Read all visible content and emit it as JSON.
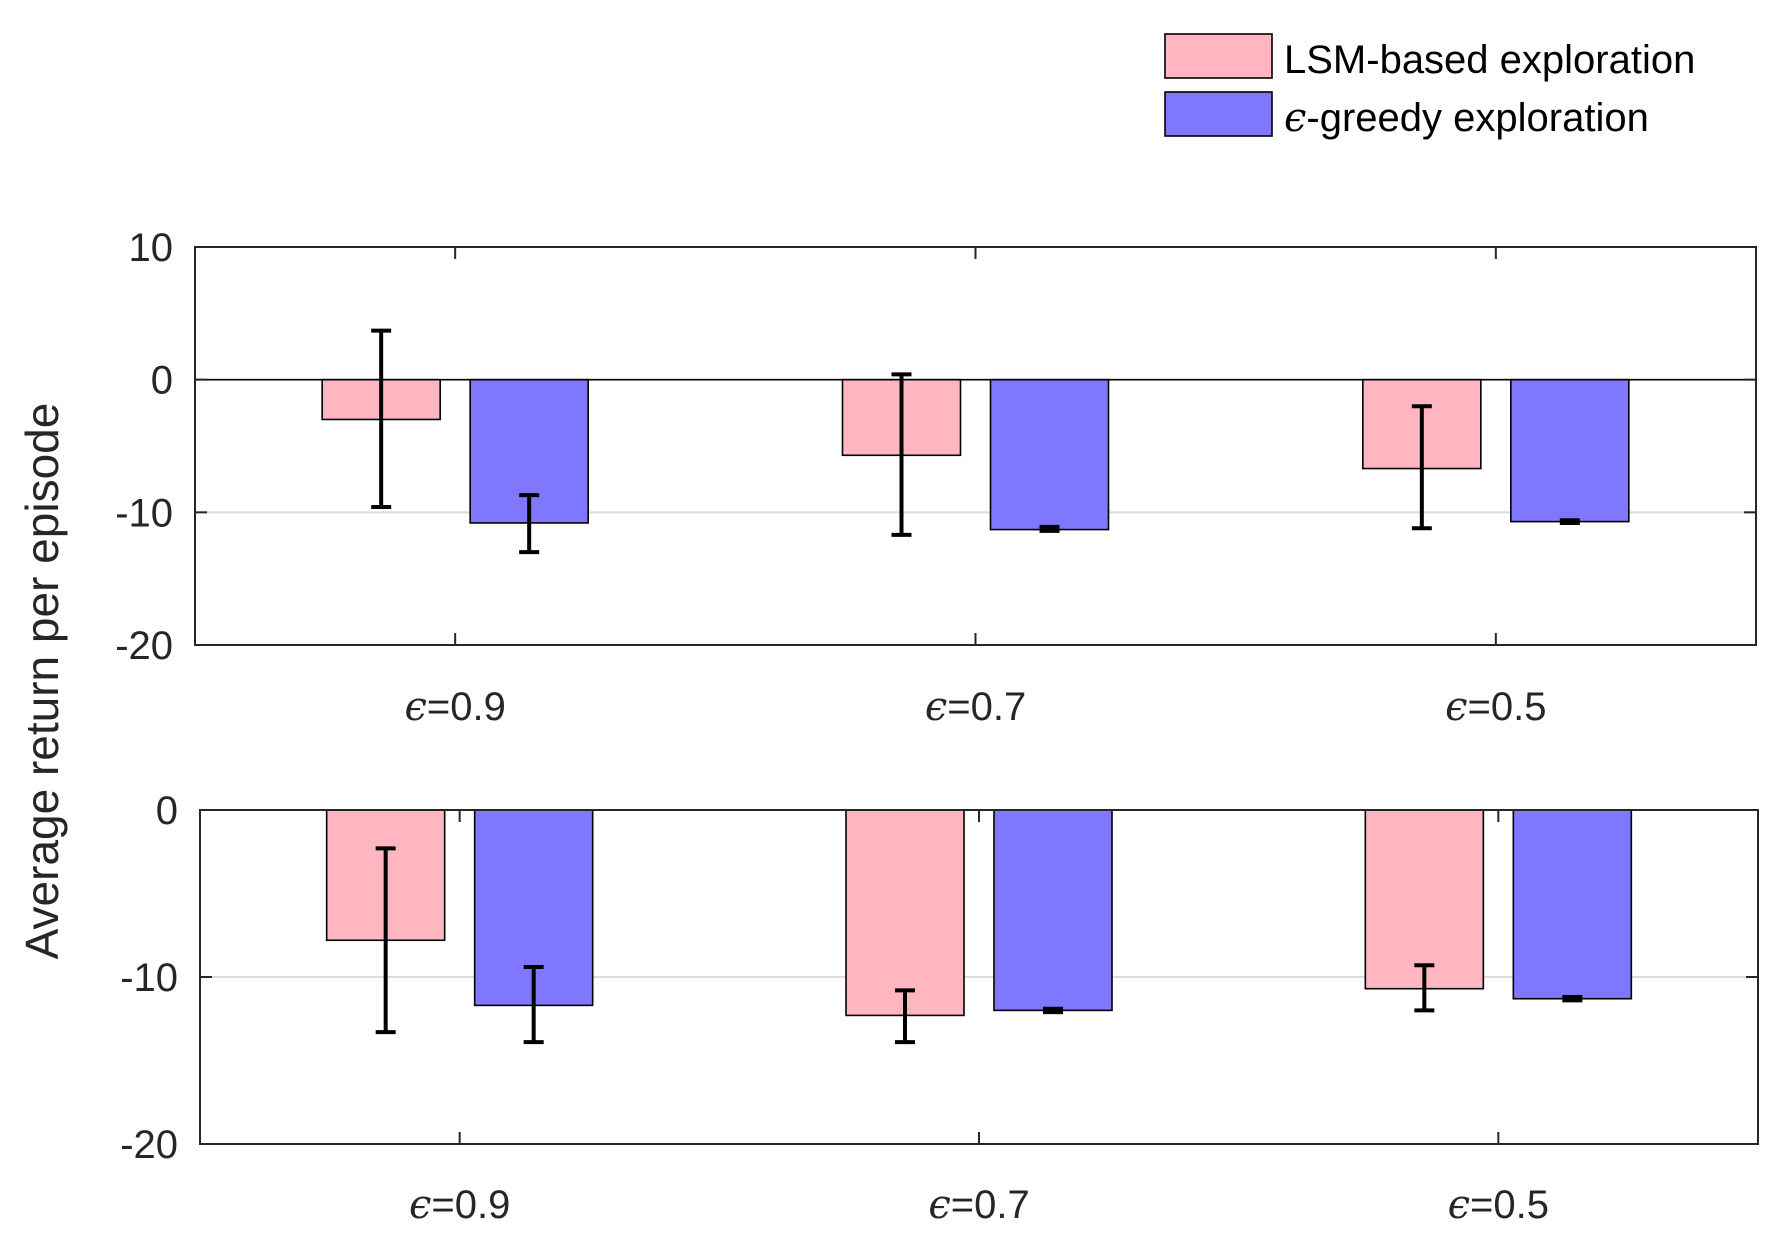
{
  "figure_ylabel": "Average return per episode",
  "legend": [
    {
      "label_prefix": "",
      "label": "LSM-based exploration",
      "color": "#FFB6C1"
    },
    {
      "label_prefix": "ϵ",
      "label": "-greedy exploration",
      "color": "#8077FF"
    }
  ],
  "chart_data": [
    {
      "type": "bar",
      "categories": [
        {
          "symbol": "ϵ",
          "text": "=0.9"
        },
        {
          "symbol": "ϵ",
          "text": "=0.7"
        },
        {
          "symbol": "ϵ",
          "text": "=0.5"
        }
      ],
      "ylim": [
        -20,
        10
      ],
      "yticks": [
        10,
        0,
        -10,
        -20
      ],
      "grid_y": [
        -10
      ],
      "zero_line": true,
      "series": [
        {
          "name": "LSM-based exploration",
          "values": [
            -3.0,
            -5.7,
            -6.7
          ],
          "err_low": [
            -9.6,
            -11.7,
            -11.2
          ],
          "err_high": [
            3.7,
            0.4,
            -2.0
          ]
        },
        {
          "name": "ϵ-greedy exploration",
          "values": [
            -10.8,
            -11.3,
            -10.7
          ],
          "err_low": [
            -13.0,
            -11.4,
            -10.8
          ],
          "err_high": [
            -8.7,
            -11.1,
            -10.6
          ]
        }
      ]
    },
    {
      "type": "bar",
      "categories": [
        {
          "symbol": "ϵ",
          "text": "=0.9"
        },
        {
          "symbol": "ϵ",
          "text": "=0.7"
        },
        {
          "symbol": "ϵ",
          "text": "=0.5"
        }
      ],
      "ylim": [
        -20,
        0
      ],
      "yticks": [
        0,
        -10,
        -20
      ],
      "grid_y": [
        -10
      ],
      "zero_line": false,
      "series": [
        {
          "name": "LSM-based exploration",
          "values": [
            -7.8,
            -12.3,
            -10.7
          ],
          "err_low": [
            -13.3,
            -13.9,
            -12.0
          ],
          "err_high": [
            -2.3,
            -10.8,
            -9.3
          ]
        },
        {
          "name": "ϵ-greedy exploration",
          "values": [
            -11.7,
            -12.0,
            -11.3
          ],
          "err_low": [
            -13.9,
            -12.1,
            -11.4
          ],
          "err_high": [
            -9.4,
            -11.9,
            -11.2
          ]
        }
      ]
    }
  ]
}
